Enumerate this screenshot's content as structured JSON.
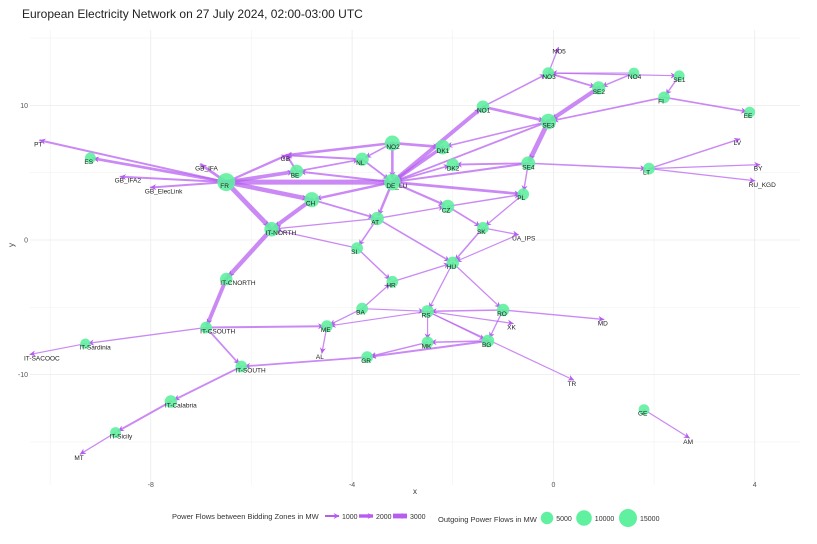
{
  "title": "European Electricity Network on 27 July 2024, 02:00-03:00 UTC",
  "colors": {
    "edge": "#b65cf0",
    "node": "#5ff0a0",
    "grid": "#ebebeb",
    "background": "#ffffff"
  },
  "chart_data": {
    "type": "network",
    "title": "European Electricity Network on 27 July 2024, 02:00-03:00 UTC",
    "xlabel": "x",
    "ylabel": "y",
    "xlim": [
      -10.4,
      4.9
    ],
    "ylim": [
      -18.2,
      15.6
    ],
    "grid": true,
    "legend_position": "bottom",
    "x_ticks": [
      -8,
      -4,
      0,
      4
    ],
    "x_tick_labels": [
      "-8",
      "-4",
      "0",
      "4"
    ],
    "y_ticks": [
      10,
      0,
      -10
    ],
    "y_tick_labels": [
      "10",
      "0",
      "-10"
    ],
    "nodes": [
      {
        "id": "FR",
        "x": -6.5,
        "y": 4.3,
        "size": 15000,
        "show": true
      },
      {
        "id": "ES",
        "x": -9.2,
        "y": 6.1,
        "size": 3000,
        "show": true
      },
      {
        "id": "PT",
        "x": -10.2,
        "y": 7.4,
        "size": 0,
        "show": false
      },
      {
        "id": "GB_IFA",
        "x": -7.0,
        "y": 5.6,
        "size": 0,
        "show": false
      },
      {
        "id": "GB_IFA2",
        "x": -8.6,
        "y": 4.7,
        "size": 0,
        "show": false
      },
      {
        "id": "GB_ElecLink",
        "x": -8.0,
        "y": 3.9,
        "size": 0,
        "show": false
      },
      {
        "id": "GB",
        "x": -5.3,
        "y": 6.3,
        "size": 0,
        "show": false
      },
      {
        "id": "BE",
        "x": -5.1,
        "y": 5.1,
        "size": 6000,
        "show": true
      },
      {
        "id": "NL",
        "x": -3.8,
        "y": 6.0,
        "size": 6000,
        "show": true
      },
      {
        "id": "NO2",
        "x": -3.2,
        "y": 7.2,
        "size": 9000,
        "show": true
      },
      {
        "id": "DE_LU",
        "x": -3.2,
        "y": 4.3,
        "size": 12000,
        "show": true
      },
      {
        "id": "DK1",
        "x": -2.2,
        "y": 6.9,
        "size": 8000,
        "show": true
      },
      {
        "id": "DK2",
        "x": -2.0,
        "y": 5.6,
        "size": 5000,
        "show": true
      },
      {
        "id": "NO1",
        "x": -1.4,
        "y": 9.9,
        "size": 5000,
        "show": true
      },
      {
        "id": "NO3",
        "x": -0.1,
        "y": 12.4,
        "size": 4000,
        "show": true
      },
      {
        "id": "NO5",
        "x": 0.1,
        "y": 14.3,
        "size": 0,
        "show": false
      },
      {
        "id": "NO4",
        "x": 1.6,
        "y": 12.4,
        "size": 3000,
        "show": true
      },
      {
        "id": "SE1",
        "x": 2.5,
        "y": 12.2,
        "size": 3000,
        "show": true
      },
      {
        "id": "SE2",
        "x": 0.9,
        "y": 11.3,
        "size": 6000,
        "show": true
      },
      {
        "id": "SE3",
        "x": -0.1,
        "y": 8.8,
        "size": 10000,
        "show": true
      },
      {
        "id": "FI",
        "x": 2.2,
        "y": 10.6,
        "size": 4000,
        "show": true
      },
      {
        "id": "EE",
        "x": 3.9,
        "y": 9.5,
        "size": 3000,
        "show": true
      },
      {
        "id": "LV",
        "x": 3.7,
        "y": 7.5,
        "size": 0,
        "show": false
      },
      {
        "id": "SE4",
        "x": -0.5,
        "y": 5.7,
        "size": 7000,
        "show": true
      },
      {
        "id": "LT",
        "x": 1.9,
        "y": 5.3,
        "size": 4000,
        "show": true
      },
      {
        "id": "BY",
        "x": 4.1,
        "y": 5.6,
        "size": 0,
        "show": false
      },
      {
        "id": "RU_KGD",
        "x": 4.0,
        "y": 4.4,
        "size": 0,
        "show": false
      },
      {
        "id": "PL",
        "x": -0.6,
        "y": 3.4,
        "size": 4000,
        "show": true
      },
      {
        "id": "CH",
        "x": -4.8,
        "y": 3.0,
        "size": 9000,
        "show": true
      },
      {
        "id": "CZ",
        "x": -2.1,
        "y": 2.5,
        "size": 6000,
        "show": true
      },
      {
        "id": "AT",
        "x": -3.5,
        "y": 1.6,
        "size": 6000,
        "show": true
      },
      {
        "id": "SK",
        "x": -1.4,
        "y": 0.9,
        "size": 4000,
        "show": true
      },
      {
        "id": "UA_IPS",
        "x": -0.7,
        "y": 0.4,
        "size": 0,
        "show": false
      },
      {
        "id": "HU",
        "x": -2.0,
        "y": -1.7,
        "size": 5000,
        "show": true
      },
      {
        "id": "SI",
        "x": -3.9,
        "y": -0.6,
        "size": 4000,
        "show": true
      },
      {
        "id": "HR",
        "x": -3.2,
        "y": -3.1,
        "size": 4000,
        "show": true
      },
      {
        "id": "IT-NORTH",
        "x": -5.6,
        "y": 0.8,
        "size": 8000,
        "show": true
      },
      {
        "id": "IT-CNORTH",
        "x": -6.5,
        "y": -2.9,
        "size": 5000,
        "show": true
      },
      {
        "id": "IT-CSOUTH",
        "x": -6.9,
        "y": -6.5,
        "size": 4000,
        "show": true
      },
      {
        "id": "IT-Sardinia",
        "x": -9.3,
        "y": -7.7,
        "size": 2500,
        "show": true
      },
      {
        "id": "IT-SACOOC",
        "x": -10.4,
        "y": -8.5,
        "size": 0,
        "show": false
      },
      {
        "id": "IT-SOUTH",
        "x": -6.2,
        "y": -9.4,
        "size": 4000,
        "show": true
      },
      {
        "id": "IT-Calabria",
        "x": -7.6,
        "y": -12.0,
        "size": 5000,
        "show": true
      },
      {
        "id": "IT-Sicily",
        "x": -8.7,
        "y": -14.3,
        "size": 3000,
        "show": true
      },
      {
        "id": "MT",
        "x": -9.4,
        "y": -15.9,
        "size": 0,
        "show": false
      },
      {
        "id": "BA",
        "x": -3.8,
        "y": -5.1,
        "size": 4000,
        "show": true
      },
      {
        "id": "ME",
        "x": -4.5,
        "y": -6.4,
        "size": 4000,
        "show": true
      },
      {
        "id": "AL",
        "x": -4.6,
        "y": -8.4,
        "size": 0,
        "show": false
      },
      {
        "id": "RS",
        "x": -2.5,
        "y": -5.3,
        "size": 5000,
        "show": true
      },
      {
        "id": "RO",
        "x": -1.0,
        "y": -5.2,
        "size": 5000,
        "show": true
      },
      {
        "id": "MD",
        "x": 1.0,
        "y": -5.9,
        "size": 0,
        "show": false
      },
      {
        "id": "XK",
        "x": -0.8,
        "y": -6.2,
        "size": 0,
        "show": false
      },
      {
        "id": "MK",
        "x": -2.5,
        "y": -7.6,
        "size": 4000,
        "show": true
      },
      {
        "id": "BG",
        "x": -1.3,
        "y": -7.5,
        "size": 5000,
        "show": true
      },
      {
        "id": "GR",
        "x": -3.7,
        "y": -8.7,
        "size": 4000,
        "show": true
      },
      {
        "id": "TR",
        "x": 0.4,
        "y": -10.4,
        "size": 0,
        "show": false
      },
      {
        "id": "GE",
        "x": 1.8,
        "y": -12.6,
        "size": 3000,
        "show": true
      },
      {
        "id": "AM",
        "x": 2.7,
        "y": -14.7,
        "size": 0,
        "show": false
      }
    ],
    "edges": [
      {
        "from": "FR",
        "to": "PT",
        "flow": 1000
      },
      {
        "from": "FR",
        "to": "ES",
        "flow": 1500
      },
      {
        "from": "FR",
        "to": "GB_IFA",
        "flow": 1600
      },
      {
        "from": "FR",
        "to": "GB_IFA2",
        "flow": 1000
      },
      {
        "from": "FR",
        "to": "GB_ElecLink",
        "flow": 1000
      },
      {
        "from": "FR",
        "to": "GB",
        "flow": 1200
      },
      {
        "from": "FR",
        "to": "BE",
        "flow": 2200
      },
      {
        "from": "FR",
        "to": "DE_LU",
        "flow": 3200
      },
      {
        "from": "FR",
        "to": "CH",
        "flow": 2800
      },
      {
        "from": "FR",
        "to": "IT-NORTH",
        "flow": 3000
      },
      {
        "from": "BE",
        "to": "GB",
        "flow": 1000
      },
      {
        "from": "NL",
        "to": "GB",
        "flow": 1000
      },
      {
        "from": "NO2",
        "to": "GB",
        "flow": 1400
      },
      {
        "from": "BE",
        "to": "NL",
        "flow": 800
      },
      {
        "from": "DE_LU",
        "to": "BE",
        "flow": 1000
      },
      {
        "from": "NO2",
        "to": "NL",
        "flow": 700
      },
      {
        "from": "NO2",
        "to": "DE_LU",
        "flow": 1400
      },
      {
        "from": "NL",
        "to": "DE_LU",
        "flow": 900
      },
      {
        "from": "NO2",
        "to": "DK1",
        "flow": 1500
      },
      {
        "from": "DK1",
        "to": "DE_LU",
        "flow": 2000
      },
      {
        "from": "DE_LU",
        "to": "DK2",
        "flow": 800
      },
      {
        "from": "DE_LU",
        "to": "NO1",
        "flow": 2400
      },
      {
        "from": "NO1",
        "to": "SE3",
        "flow": 1500
      },
      {
        "from": "NO1",
        "to": "NO3",
        "flow": 700
      },
      {
        "from": "NO3",
        "to": "NO5",
        "flow": 500
      },
      {
        "from": "NO3",
        "to": "SE2",
        "flow": 900
      },
      {
        "from": "NO4",
        "to": "NO3",
        "flow": 400
      },
      {
        "from": "NO4",
        "to": "SE2",
        "flow": 600
      },
      {
        "from": "NO3",
        "to": "SE1",
        "flow": 400
      },
      {
        "from": "SE2",
        "to": "SE3",
        "flow": 2500
      },
      {
        "from": "SE1",
        "to": "FI",
        "flow": 600
      },
      {
        "from": "FI",
        "to": "SE3",
        "flow": 800
      },
      {
        "from": "FI",
        "to": "EE",
        "flow": 800
      },
      {
        "from": "SE3",
        "to": "DK1",
        "flow": 700
      },
      {
        "from": "SE3",
        "to": "SE4",
        "flow": 3000
      },
      {
        "from": "SE3",
        "to": "DE_LU",
        "flow": 900
      },
      {
        "from": "SE4",
        "to": "DK2",
        "flow": 900
      },
      {
        "from": "SE4",
        "to": "DE_LU",
        "flow": 1000
      },
      {
        "from": "SE4",
        "to": "PL",
        "flow": 600
      },
      {
        "from": "SE4",
        "to": "LT",
        "flow": 700
      },
      {
        "from": "LT",
        "to": "LV",
        "flow": 600
      },
      {
        "from": "LT",
        "to": "BY",
        "flow": 500
      },
      {
        "from": "LT",
        "to": "RU_KGD",
        "flow": 500
      },
      {
        "from": "DE_LU",
        "to": "PL",
        "flow": 1500
      },
      {
        "from": "DE_LU",
        "to": "CH",
        "flow": 1300
      },
      {
        "from": "DE_LU",
        "to": "CZ",
        "flow": 1100
      },
      {
        "from": "DE_LU",
        "to": "AT",
        "flow": 1300
      },
      {
        "from": "CZ",
        "to": "PL",
        "flow": 600
      },
      {
        "from": "CZ",
        "to": "SK",
        "flow": 800
      },
      {
        "from": "PL",
        "to": "SK",
        "flow": 500
      },
      {
        "from": "SK",
        "to": "UA_IPS",
        "flow": 500
      },
      {
        "from": "SK",
        "to": "HU",
        "flow": 700
      },
      {
        "from": "AT",
        "to": "CZ",
        "flow": 500
      },
      {
        "from": "CH",
        "to": "IT-NORTH",
        "flow": 2500
      },
      {
        "from": "CH",
        "to": "AT",
        "flow": 800
      },
      {
        "from": "AT",
        "to": "IT-NORTH",
        "flow": 500
      },
      {
        "from": "AT",
        "to": "SI",
        "flow": 700
      },
      {
        "from": "AT",
        "to": "HU",
        "flow": 700
      },
      {
        "from": "SI",
        "to": "IT-NORTH",
        "flow": 500
      },
      {
        "from": "SI",
        "to": "HR",
        "flow": 600
      },
      {
        "from": "HR",
        "to": "HU",
        "flow": 500
      },
      {
        "from": "HU",
        "to": "RO",
        "flow": 500
      },
      {
        "from": "HU",
        "to": "RS",
        "flow": 500
      },
      {
        "from": "UA_IPS",
        "to": "HU",
        "flow": 400
      },
      {
        "from": "IT-NORTH",
        "to": "IT-CNORTH",
        "flow": 2700
      },
      {
        "from": "IT-CNORTH",
        "to": "IT-CSOUTH",
        "flow": 2300
      },
      {
        "from": "IT-CSOUTH",
        "to": "IT-Sardinia",
        "flow": 500
      },
      {
        "from": "IT-Sardinia",
        "to": "IT-SACOOC",
        "flow": 400
      },
      {
        "from": "IT-CSOUTH",
        "to": "ME",
        "flow": 1000
      },
      {
        "from": "IT-CSOUTH",
        "to": "IT-SOUTH",
        "flow": 800
      },
      {
        "from": "IT-SOUTH",
        "to": "IT-Calabria",
        "flow": 900
      },
      {
        "from": "IT-Calabria",
        "to": "IT-Sicily",
        "flow": 1000
      },
      {
        "from": "IT-Sicily",
        "to": "MT",
        "flow": 500
      },
      {
        "from": "GR",
        "to": "IT-SOUTH",
        "flow": 800
      },
      {
        "from": "BA",
        "to": "HR",
        "flow": 500
      },
      {
        "from": "BA",
        "to": "ME",
        "flow": 500
      },
      {
        "from": "BA",
        "to": "RS",
        "flow": 400
      },
      {
        "from": "ME",
        "to": "AL",
        "flow": 500
      },
      {
        "from": "RS",
        "to": "ME",
        "flow": 400
      },
      {
        "from": "RO",
        "to": "RS",
        "flow": 600
      },
      {
        "from": "RO",
        "to": "MD",
        "flow": 600
      },
      {
        "from": "RO",
        "to": "BG",
        "flow": 500
      },
      {
        "from": "RS",
        "to": "XK",
        "flow": 400
      },
      {
        "from": "RS",
        "to": "MK",
        "flow": 400
      },
      {
        "from": "RS",
        "to": "BG",
        "flow": 400
      },
      {
        "from": "BG",
        "to": "MK",
        "flow": 700
      },
      {
        "from": "BG",
        "to": "GR",
        "flow": 1000
      },
      {
        "from": "MK",
        "to": "GR",
        "flow": 600
      },
      {
        "from": "RS",
        "to": "TR",
        "flow": 400
      },
      {
        "from": "GE",
        "to": "AM",
        "flow": 500
      }
    ],
    "legend": {
      "edge_title": "Power Flows between Bidding Zones in MW",
      "edge_items": [
        {
          "label": "1000",
          "flow": 1000
        },
        {
          "label": "2000",
          "flow": 2000
        },
        {
          "label": "3000",
          "flow": 3000
        }
      ],
      "node_title": "Outgoing Power Flows in MW",
      "node_items": [
        {
          "label": "5000",
          "size": 5000
        },
        {
          "label": "10000",
          "size": 10000
        },
        {
          "label": "15000",
          "size": 15000
        }
      ]
    }
  }
}
